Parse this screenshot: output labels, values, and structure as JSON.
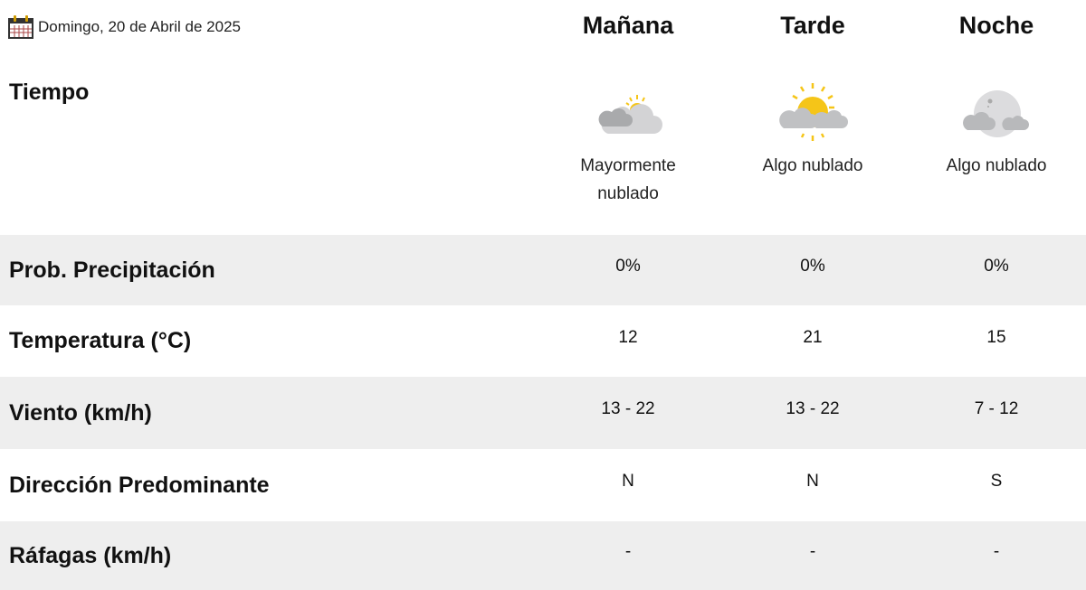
{
  "date": {
    "icon": "calendar-icon",
    "text": "Domingo, 20 de Abril de 2025"
  },
  "periods": [
    {
      "label": "Mañana",
      "icon": "mostly-cloudy-icon",
      "description": "Mayormente nublado",
      "desc_line1": "Mayormente",
      "desc_line2": "nublado"
    },
    {
      "label": "Tarde",
      "icon": "partly-cloudy-sun-icon",
      "description": "Algo nublado"
    },
    {
      "label": "Noche",
      "icon": "partly-cloudy-moon-icon",
      "description": "Algo nublado"
    }
  ],
  "weather_label": "Tiempo",
  "rows": [
    {
      "label": "Prob. Precipitación",
      "values": [
        "0%",
        "0%",
        "0%"
      ]
    },
    {
      "label": "Temperatura (°C)",
      "values": [
        "12",
        "21",
        "15"
      ]
    },
    {
      "label": "Viento (km/h)",
      "values": [
        "13 - 22",
        "13 - 22",
        "7 - 12"
      ]
    },
    {
      "label": "Dirección Predominante",
      "values": [
        "N",
        "N",
        "S"
      ]
    },
    {
      "label": "Ráfagas (km/h)",
      "values": [
        "-",
        "-",
        "-"
      ]
    }
  ]
}
